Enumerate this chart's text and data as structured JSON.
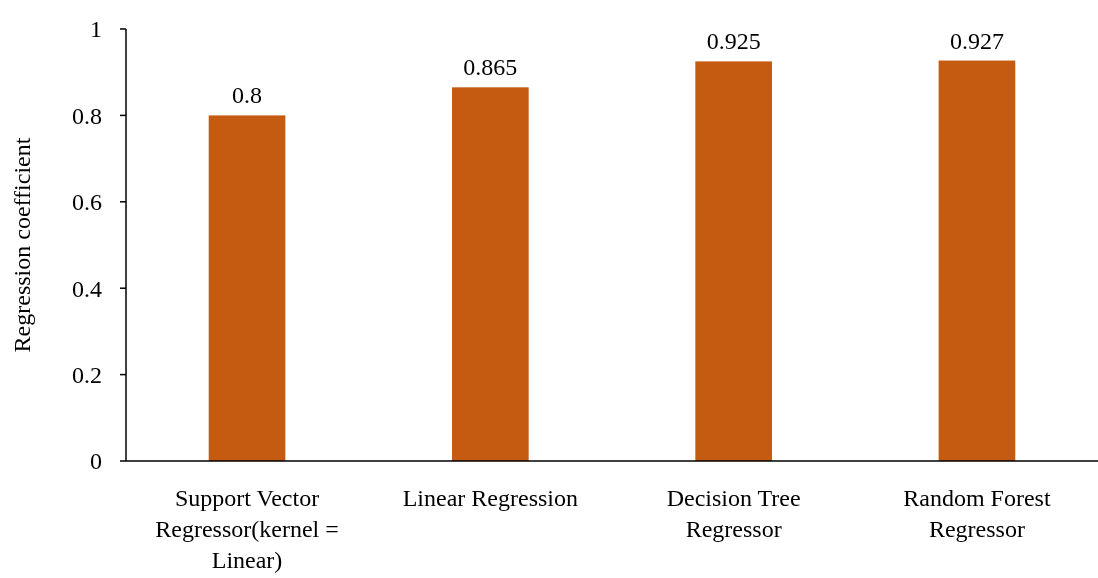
{
  "chart_data": {
    "type": "bar",
    "ylabel": "Regression coefficient",
    "categories": [
      "Support Vector Regressor(kernel = Linear)",
      "Linear Regression",
      "Decision Tree Regressor",
      "Random Forest Regressor"
    ],
    "values": [
      0.8,
      0.865,
      0.925,
      0.927
    ],
    "color": "#c55a11",
    "ylim": [
      0,
      1
    ],
    "yticks": [
      0,
      0.2,
      0.4,
      0.6,
      0.8,
      1
    ],
    "data_labels": true,
    "grid": false
  }
}
